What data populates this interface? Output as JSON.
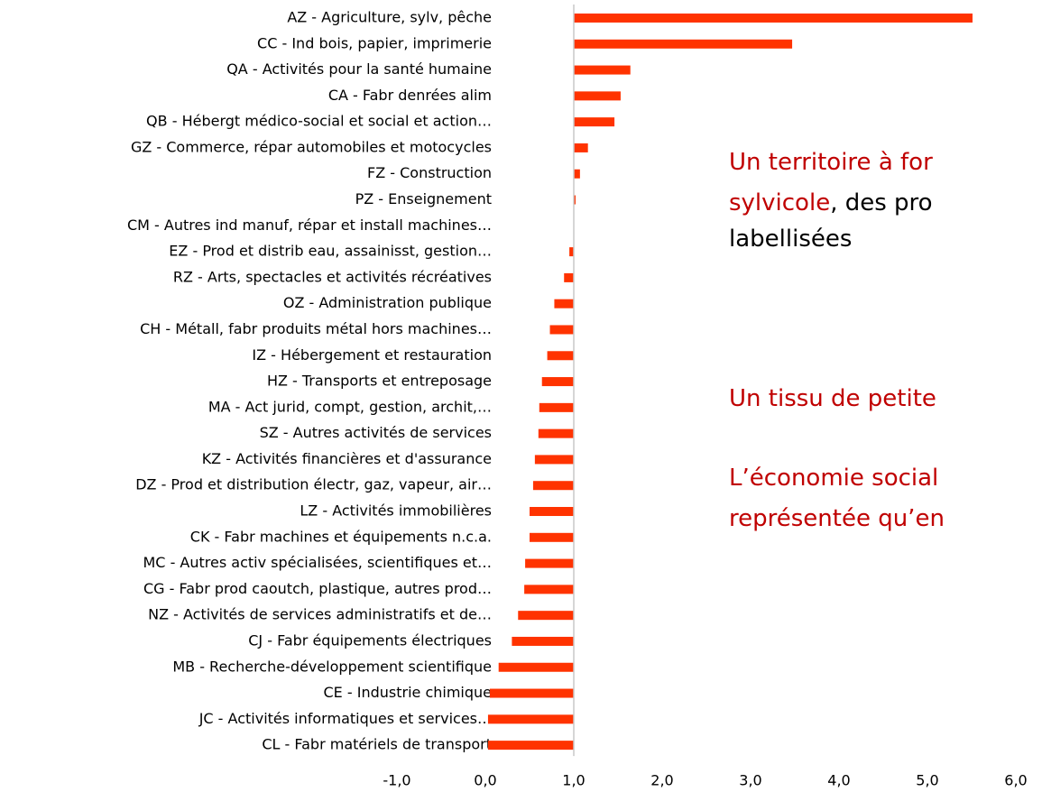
{
  "chart_data": {
    "type": "barh",
    "categories": [
      "AZ - Agriculture, sylv, pêche",
      "CC - Ind bois, papier, imprimerie",
      "QA - Activités pour la santé humaine",
      "CA - Fabr denrées alim",
      "QB - Hébergt médico-social et social et action…",
      "GZ - Commerce, répar automobiles et motocycles",
      "FZ - Construction",
      "PZ - Enseignement",
      "CM - Autres ind manuf, répar et install machines…",
      "EZ - Prod et distrib eau, assainisst, gestion…",
      "RZ - Arts, spectacles et activités récréatives",
      "OZ - Administration publique",
      "CH - Métall, fabr produits métal hors machines…",
      "IZ - Hébergement et restauration",
      "HZ - Transports et entreposage",
      "MA - Act jurid, compt, gestion, archit,…",
      "SZ - Autres activités de services",
      "KZ - Activités financières et d'assurance",
      "DZ - Prod et distribution électr, gaz, vapeur, air…",
      "LZ - Activités immobilières",
      "CK - Fabr machines et équipements n.c.a.",
      "MC - Autres activ spécialisées, scientifiques et…",
      "CG - Fabr prod caoutch, plastique, autres prod…",
      "NZ - Activités de services administratifs et de…",
      "CJ - Fabr équipements électriques",
      "MB - Recherche-développement scientifique",
      "CE - Industrie chimique",
      "JC - Activités informatiques et services…",
      "CL - Fabr matériels de transport"
    ],
    "values": [
      5.51,
      3.47,
      1.64,
      1.53,
      1.46,
      1.16,
      1.07,
      1.02,
      1.0,
      0.95,
      0.89,
      0.78,
      0.73,
      0.7,
      0.64,
      0.61,
      0.6,
      0.56,
      0.54,
      0.5,
      0.5,
      0.45,
      0.44,
      0.37,
      0.3,
      0.15,
      0.05,
      0.03,
      0.03
    ],
    "color": "#ff3300",
    "base": 1,
    "xlim": [
      -1,
      6
    ],
    "xticks": [
      {
        "value": -1,
        "label": "-1,0"
      },
      {
        "value": 0,
        "label": "0,0"
      },
      {
        "value": 1,
        "label": "1,0"
      },
      {
        "value": 2,
        "label": "2,0"
      },
      {
        "value": 3,
        "label": "3,0"
      },
      {
        "value": 4,
        "label": "4,0"
      },
      {
        "value": 5,
        "label": "5,0"
      },
      {
        "value": 6,
        "label": "6,0"
      }
    ],
    "annotations": [
      {
        "lines": [
          [
            {
              "text": "Un territoire à for",
              "color": "#c00000"
            }
          ],
          [
            {
              "text": "sylvicole",
              "color": "#c00000"
            },
            {
              "text": ", des pro",
              "color": "#000000"
            }
          ],
          [
            {
              "text": "labellisées",
              "color": "#000000"
            }
          ]
        ]
      },
      {
        "lines": [
          [
            {
              "text": "Un tissu de petite",
              "color": "#c00000"
            }
          ]
        ]
      },
      {
        "lines": [
          [
            {
              "text": "L’économie social",
              "color": "#c00000"
            }
          ],
          [
            {
              "text": "représentée qu’en",
              "color": "#c00000"
            }
          ]
        ]
      }
    ]
  }
}
